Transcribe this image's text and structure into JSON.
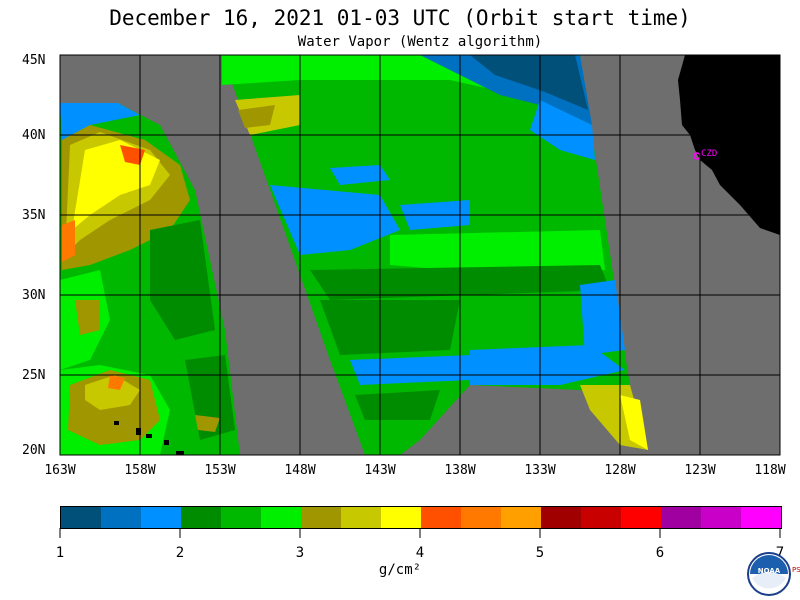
{
  "title": "December 16, 2021  01-03 UTC  (Orbit start time)",
  "subtitle": "Water Vapor (Wentz algorithm)",
  "lat_labels": [
    "45N",
    "40N",
    "35N",
    "30N",
    "25N",
    "20N"
  ],
  "lon_labels": [
    "163W",
    "158W",
    "153W",
    "148W",
    "143W",
    "138W",
    "133W",
    "128W",
    "123W",
    "118W"
  ],
  "station_label": "CZD",
  "colorbar": {
    "ticks": [
      "1",
      "2",
      "3",
      "4",
      "5",
      "6",
      "7"
    ],
    "units": "g/cm²",
    "colors": [
      "#00507a",
      "#0070c0",
      "#0090ff",
      "#008c00",
      "#00b800",
      "#00ee00",
      "#a09600",
      "#c8c800",
      "#ffff00",
      "#ff5000",
      "#ff7800",
      "#ffa000",
      "#a00000",
      "#c80000",
      "#ff0000",
      "#a000a0",
      "#c800c8",
      "#ff00ff"
    ]
  },
  "logo": {
    "text": "NOAA",
    "side_text": "PSL"
  },
  "map_colors": {
    "missing": "#6e6e6e",
    "land": "#000000",
    "grid": "#000000",
    "station": "#ff00ff"
  }
}
